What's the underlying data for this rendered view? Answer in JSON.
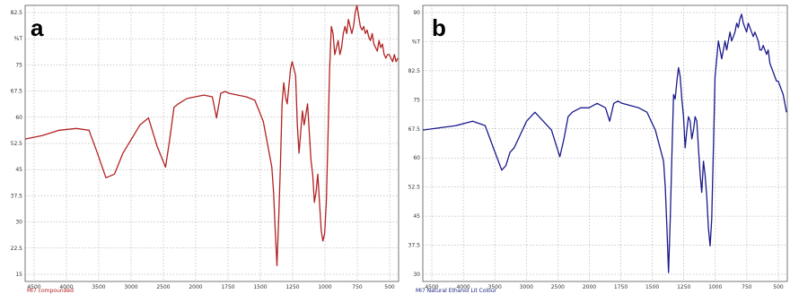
{
  "panels": [
    {
      "letter": "a",
      "footer": "MI7 compounded",
      "color": "#b22222"
    },
    {
      "letter": "b",
      "footer": "MI7 Natural Ethanol Lit Colour",
      "color": "#1a1a8c"
    }
  ],
  "chart_data": [
    {
      "type": "line",
      "title": "",
      "xlabel": "",
      "ylabel": "%T",
      "xlim": [
        4700,
        310
      ],
      "ylim": [
        7.5,
        86
      ],
      "x_ticks": [
        "4500",
        "4000",
        "3500",
        "3000",
        "2500",
        "2000",
        "1750",
        "1500",
        "1250",
        "1000",
        "750",
        "500"
      ],
      "y_ticks": [
        "82.5",
        "%T",
        "75",
        "67.5",
        "60",
        "52.5",
        "45",
        "37.5",
        "30",
        "22.5",
        "15"
      ],
      "grid": true,
      "series": [
        {
          "x": [
            4700,
            4500,
            4300,
            4100,
            3950,
            3850,
            3750,
            3650,
            3550,
            3450,
            3350,
            3250,
            3150,
            3050,
            3000,
            2950,
            2900,
            2800,
            2700,
            2600,
            2500,
            2450,
            2400,
            2350,
            2300,
            2200,
            2100,
            2000,
            1900,
            1800,
            1780,
            1760,
            1740,
            1720,
            1700,
            1680,
            1660,
            1640,
            1620,
            1600,
            1580,
            1560,
            1540,
            1520,
            1500,
            1480,
            1460,
            1440,
            1420,
            1400,
            1380,
            1360,
            1340,
            1320,
            1300,
            1280,
            1260,
            1240,
            1220,
            1200,
            1180,
            1160,
            1140,
            1120,
            1100,
            1080,
            1060,
            1040,
            1020,
            1000,
            980,
            960,
            940,
            920,
            900,
            880,
            860,
            840,
            820,
            800,
            780,
            760,
            740,
            720,
            700,
            680,
            660,
            640,
            620,
            600,
            580,
            560,
            540,
            520,
            500,
            480,
            460,
            440,
            420,
            400,
            380,
            360,
            340,
            320
          ],
          "y": [
            48,
            49,
            50.5,
            51,
            50.5,
            44,
            37,
            38,
            44,
            48,
            52,
            54,
            46,
            40,
            48,
            57,
            58,
            59.5,
            60,
            60.5,
            60,
            54,
            61,
            61.5,
            61,
            60.5,
            60,
            59,
            53,
            40,
            33,
            22,
            12,
            25,
            40,
            58,
            64,
            60,
            58,
            63,
            68,
            70,
            68,
            66,
            52,
            44,
            50,
            56,
            52,
            55,
            58,
            50,
            42,
            38,
            30,
            33,
            38,
            30,
            22,
            19,
            21,
            30,
            48,
            68,
            80,
            78,
            72,
            74,
            76,
            72,
            74,
            78,
            80,
            78,
            82,
            80,
            78,
            80,
            84,
            86,
            83,
            80,
            79,
            80,
            78,
            79,
            77,
            76,
            78,
            75,
            74,
            73,
            76,
            74,
            75,
            72,
            71,
            72,
            72,
            71,
            70,
            72,
            70,
            71
          ]
        }
      ]
    },
    {
      "type": "line",
      "title": "",
      "xlabel": "",
      "ylabel": "%T",
      "xlim": [
        4700,
        310
      ],
      "ylim": [
        28,
        90
      ],
      "x_ticks": [
        "4500",
        "4000",
        "3500",
        "3000",
        "2500",
        "2000",
        "1750",
        "1500",
        "1250",
        "1000",
        "750",
        "500"
      ],
      "y_ticks": [
        "90",
        "%T",
        "82.5",
        "75",
        "67.5",
        "60",
        "52.5",
        "45",
        "37.5",
        "30"
      ],
      "grid": true,
      "series": [
        {
          "x": [
            4700,
            4500,
            4300,
            4100,
            3950,
            3850,
            3750,
            3700,
            3650,
            3600,
            3550,
            3450,
            3350,
            3250,
            3150,
            3050,
            3000,
            2950,
            2900,
            2800,
            2700,
            2600,
            2500,
            2450,
            2400,
            2350,
            2300,
            2200,
            2100,
            2000,
            1900,
            1800,
            1780,
            1760,
            1740,
            1720,
            1700,
            1680,
            1660,
            1640,
            1620,
            1600,
            1580,
            1560,
            1540,
            1520,
            1500,
            1480,
            1460,
            1440,
            1420,
            1400,
            1380,
            1360,
            1340,
            1320,
            1300,
            1280,
            1260,
            1240,
            1220,
            1200,
            1180,
            1160,
            1140,
            1120,
            1100,
            1080,
            1060,
            1040,
            1020,
            1000,
            980,
            960,
            940,
            920,
            900,
            880,
            860,
            840,
            820,
            800,
            780,
            760,
            740,
            720,
            700,
            680,
            660,
            640,
            620,
            600,
            580,
            560,
            540,
            520,
            500,
            480,
            460,
            440,
            420,
            400,
            380,
            360,
            340,
            320
          ],
          "y": [
            62,
            62.5,
            63,
            64,
            63,
            58,
            53,
            54,
            57,
            58,
            60,
            64,
            66,
            64,
            62,
            56,
            60,
            65,
            66,
            67,
            67,
            68,
            67,
            64,
            68,
            68.5,
            68,
            67.5,
            67,
            66,
            62,
            55,
            49,
            40,
            30,
            42,
            56,
            70,
            69,
            73,
            76,
            74,
            69,
            65,
            58,
            62,
            65,
            64,
            60,
            62,
            65,
            64,
            58,
            52,
            48,
            55,
            52,
            47,
            40,
            36,
            42,
            58,
            74,
            78,
            82,
            80,
            78,
            80,
            82,
            80,
            82,
            84,
            82,
            83,
            84,
            86,
            85,
            87,
            88,
            86,
            85,
            84,
            86,
            85,
            84,
            83,
            84,
            83,
            82,
            80,
            80,
            81,
            80,
            79,
            80,
            77,
            76,
            75,
            74,
            73,
            73,
            72,
            71,
            70,
            68,
            66
          ]
        }
      ]
    }
  ]
}
